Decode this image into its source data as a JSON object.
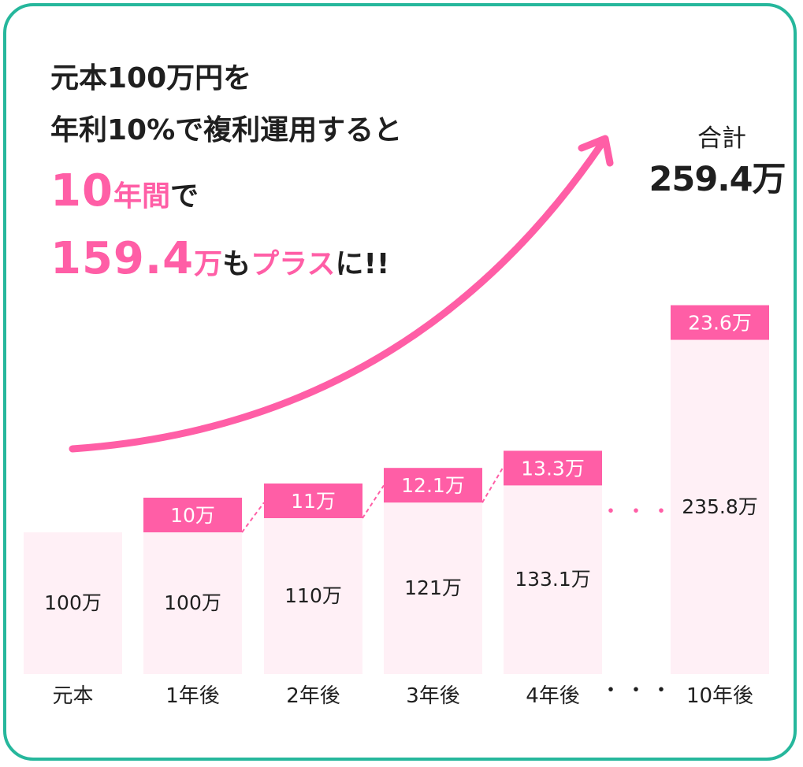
{
  "headline": {
    "line1": "元本100万円を",
    "line2": "年利10%で複利運用すると",
    "line3_num": "10",
    "line3_unit": "年間",
    "line3_tail": "で",
    "line4_num": "159.4",
    "line4_unit": "万",
    "line4_mid": "も",
    "line4_pink": "プラス",
    "line4_tail": "に!!"
  },
  "total": {
    "label": "合計",
    "value": "259.4万"
  },
  "ellipsis": "・・・",
  "colors": {
    "accent": "#ff5ea6",
    "bar_fill": "#fff0f6",
    "border": "#26b79c",
    "text": "#1f1f1f"
  },
  "chart_data": {
    "type": "bar",
    "categories": [
      "元本",
      "1年後",
      "2年後",
      "3年後",
      "4年後",
      "10年後"
    ],
    "series": [
      {
        "values": [
          100,
          100,
          110,
          121,
          133.1,
          235.8
        ],
        "labels": [
          "100万",
          "100万",
          "110万",
          "121万",
          "133.1万",
          "235.8万"
        ]
      },
      {
        "values": [
          0,
          10,
          11,
          12.1,
          13.3,
          23.6
        ],
        "labels": [
          "",
          "10万",
          "11万",
          "12.1万",
          "13.3万",
          "23.6万"
        ]
      }
    ],
    "gap_after_index": 4,
    "stacked": true
  }
}
